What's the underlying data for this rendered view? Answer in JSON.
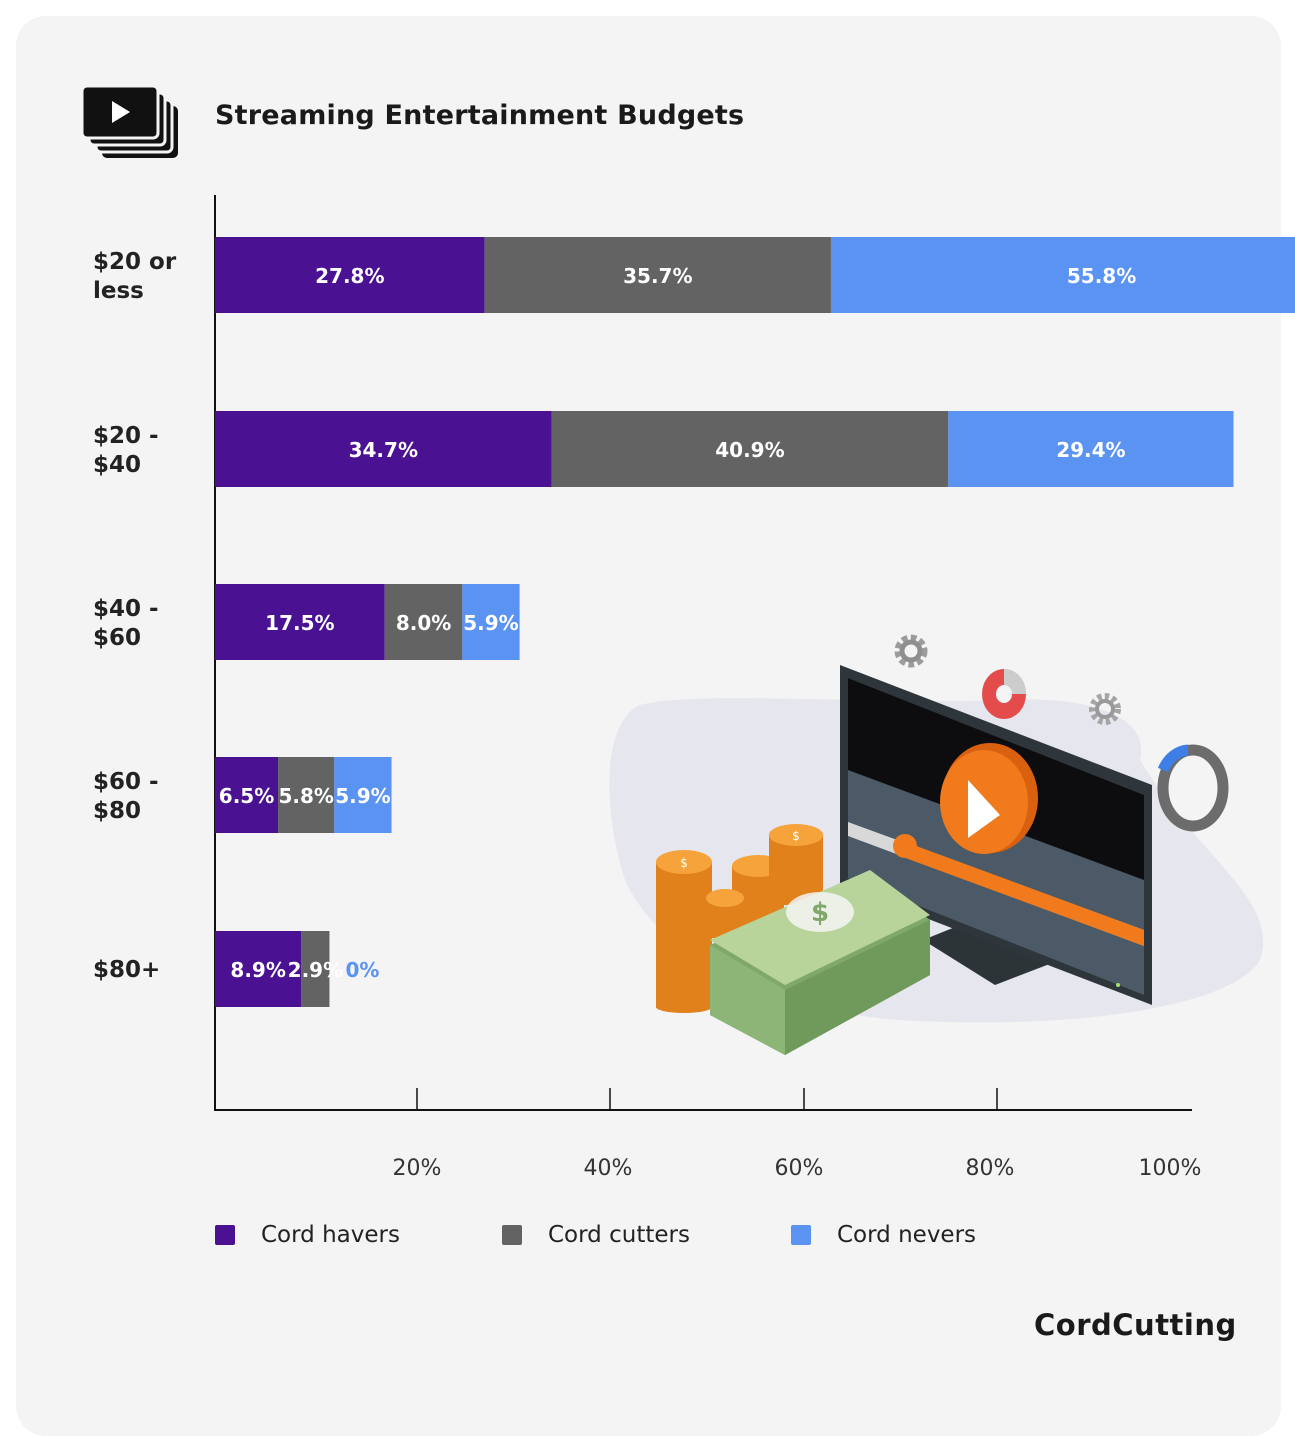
{
  "title": "Streaming Entertainment Budgets",
  "brand": "CordCutting",
  "icons": {
    "title_icon": "video-stack-icon"
  },
  "colors": {
    "cord_havers": "#4a1192",
    "cord_cutters": "#636363",
    "cord_nevers": "#5b93f3",
    "background": "#f4f4f5"
  },
  "chart_data": {
    "type": "bar",
    "orientation": "horizontal",
    "stacked": true,
    "title": "Streaming Entertainment Budgets",
    "categories": [
      "$20 or less",
      "$20 - $40",
      "$40 - $60",
      "$60 - $80",
      "$80+"
    ],
    "series": [
      {
        "name": "Cord havers",
        "values": [
          27.8,
          34.7,
          17.5,
          6.5,
          8.9
        ],
        "labels": [
          "27.8%",
          "34.7%",
          "17.5%",
          "6.5%",
          "8.9%"
        ]
      },
      {
        "name": "Cord cutters",
        "values": [
          35.7,
          40.9,
          8.0,
          5.8,
          2.9
        ],
        "labels": [
          "35.7%",
          "40.9%",
          "8.0%",
          "5.8%",
          "2.9%"
        ]
      },
      {
        "name": "Cord nevers",
        "values": [
          55.8,
          29.4,
          5.9,
          5.9,
          0
        ],
        "labels": [
          "55.8%",
          "29.4%",
          "5.9%",
          "5.9%",
          "0%"
        ]
      }
    ],
    "x_ticks": [
      "20%",
      "40%",
      "60%",
      "80%",
      "100%"
    ],
    "legend_position": "bottom-left",
    "grid": false
  }
}
